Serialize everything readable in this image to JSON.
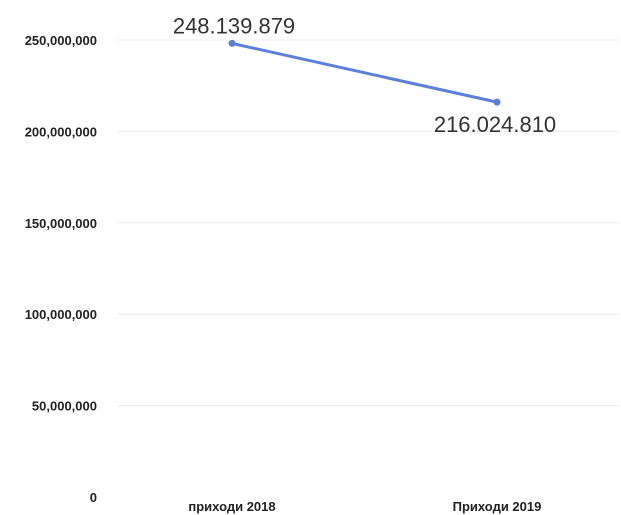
{
  "chart_data": {
    "type": "line",
    "categories": [
      "приходи 2018",
      "Приходи 2019"
    ],
    "series": [
      {
        "values": [
          248139879,
          216024810
        ],
        "data_labels": [
          "248.139.879",
          "216.024.810"
        ]
      }
    ],
    "ylim": [
      0,
      250000000
    ],
    "y_ticks": [
      0,
      50000000,
      100000000,
      150000000,
      200000000,
      250000000
    ],
    "y_tick_labels": [
      "0",
      "50,000,000",
      "100,000,000",
      "150,000,000",
      "200,000,000",
      "250,000,000"
    ],
    "grid": true,
    "legend": "none",
    "line_color": "#5b80d9"
  }
}
